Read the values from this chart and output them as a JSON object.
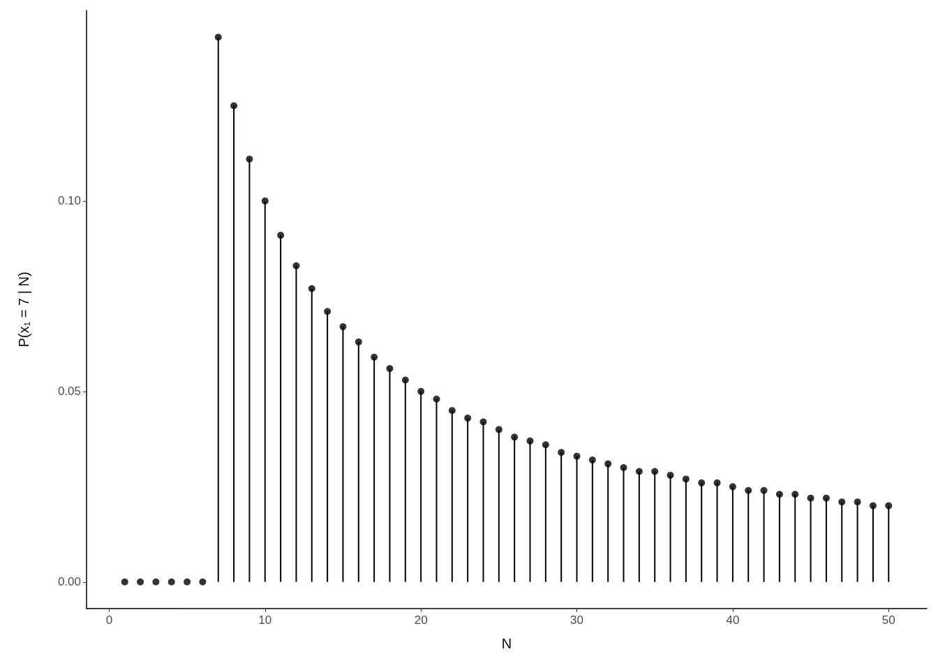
{
  "chart_data": {
    "type": "lollipop",
    "xlabel": "N",
    "ylabel": "P(x₁ = 7 | N)",
    "x": [
      1,
      2,
      3,
      4,
      5,
      6,
      7,
      8,
      9,
      10,
      11,
      12,
      13,
      14,
      15,
      16,
      17,
      18,
      19,
      20,
      21,
      22,
      23,
      24,
      25,
      26,
      27,
      28,
      29,
      30,
      31,
      32,
      33,
      34,
      35,
      36,
      37,
      38,
      39,
      40,
      41,
      42,
      43,
      44,
      45,
      46,
      47,
      48,
      49,
      50
    ],
    "values": [
      0,
      0,
      0,
      0,
      0,
      0,
      0.143,
      0.125,
      0.111,
      0.1,
      0.091,
      0.083,
      0.077,
      0.071,
      0.067,
      0.063,
      0.059,
      0.056,
      0.053,
      0.05,
      0.048,
      0.045,
      0.043,
      0.042,
      0.04,
      0.038,
      0.037,
      0.036,
      0.034,
      0.033,
      0.032,
      0.031,
      0.03,
      0.029,
      0.029,
      0.028,
      0.027,
      0.026,
      0.026,
      0.025,
      0.024,
      0.024,
      0.023,
      0.023,
      0.022,
      0.022,
      0.021,
      0.021,
      0.02,
      0.02
    ],
    "color": "#000000",
    "marker": "circle",
    "grid": false,
    "xlim": [
      -1.45,
      52.45
    ],
    "xticks": [
      0,
      10,
      20,
      30,
      40,
      50
    ],
    "ylim": [
      -0.007,
      0.15
    ],
    "yticks": [
      {
        "value": 0,
        "label": "0.00"
      },
      {
        "value": 0.05,
        "label": "0.05"
      },
      {
        "value": 0.1,
        "label": "0.10"
      }
    ]
  }
}
